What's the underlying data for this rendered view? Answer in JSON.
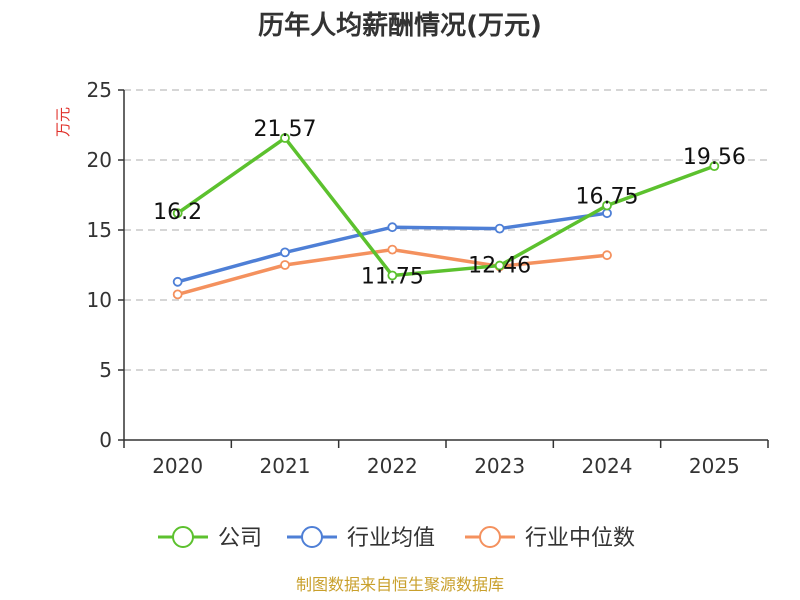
{
  "chart_data": {
    "type": "line",
    "title": "历年人均薪酬情况(万元)",
    "ylabel": "万元",
    "ylim": [
      0,
      25
    ],
    "yticks": [
      0,
      5,
      10,
      15,
      20,
      25
    ],
    "categories": [
      "2020",
      "2021",
      "2022",
      "2023",
      "2024",
      "2025"
    ],
    "grid": true,
    "legend_position": "bottom",
    "series": [
      {
        "name": "公司",
        "color": "#5cc12e",
        "values": [
          16.2,
          21.57,
          11.75,
          12.46,
          16.75,
          19.56
        ],
        "labels": [
          "16.2",
          "21.57",
          "11.75",
          "12.46",
          "16.75",
          "19.56"
        ]
      },
      {
        "name": "行业均值",
        "color": "#4e7fd6",
        "values": [
          11.3,
          13.4,
          15.2,
          15.1,
          16.2,
          null
        ]
      },
      {
        "name": "行业中位数",
        "color": "#f4915e",
        "values": [
          10.4,
          12.5,
          13.6,
          12.4,
          13.2,
          null
        ]
      }
    ],
    "source": "制图数据来自恒生聚源数据库",
    "ylabel_color": "#e0302a",
    "source_color": "#c9a02c"
  }
}
